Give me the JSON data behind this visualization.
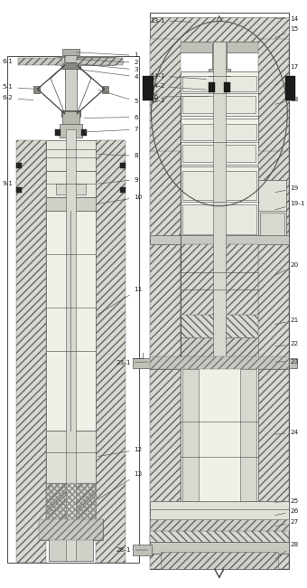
{
  "bg": "#ffffff",
  "lc": "#444444",
  "fs": 5.2
}
